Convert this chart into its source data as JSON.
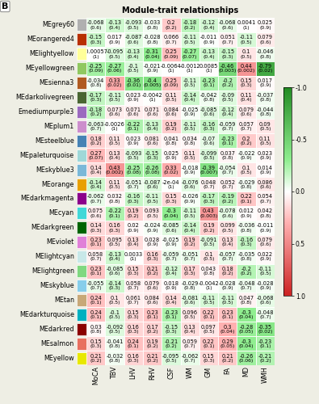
{
  "title": "Module-trait relationships",
  "panel_label": "B",
  "modules": [
    "MEgrey60",
    "MEorangered4",
    "MElightyellow",
    "MEyellowgreen",
    "MEsienna3",
    "MEdarkolivegreen",
    "Emediumpurple3",
    "MEplum1",
    "MEsteelblue",
    "MEpaleturquoise",
    "MEskyblue3",
    "MEorange",
    "MEdarkmagenta",
    "MEcyan",
    "MEdarkgreen",
    "MEviolet",
    "MElightcyan",
    "MElightgreen",
    "MEskyblue",
    "MEtan",
    "MEdarkturquoise",
    "MEdarkred",
    "MEsalmon",
    "MEyellow"
  ],
  "traits": [
    "MoCA",
    "TBV",
    "LHV",
    "RHV",
    "CSF",
    "WM",
    "GM",
    "FA",
    "MD",
    "WMH"
  ],
  "module_colors": [
    "#b0b0b0",
    "#b83000",
    "#ffff99",
    "#90c860",
    "#b05a20",
    "#4a6632",
    "#9b6abf",
    "#cc8ecc",
    "#4682b4",
    "#9fd8d8",
    "#7ab8d8",
    "#e8a000",
    "#8b008b",
    "#40d8d8",
    "#006400",
    "#e080d8",
    "#c8e8e8",
    "#80d880",
    "#87ceeb",
    "#c8a878",
    "#00b0c0",
    "#8b0000",
    "#e87060",
    "#e8e800"
  ],
  "corr_text": [
    [
      "-0.068",
      "-0.13",
      "-0.093",
      "-0.033",
      "0.2",
      "-0.18",
      "-0.12",
      "-0.068",
      "0.0041",
      "0.025"
    ],
    [
      "-0.15",
      "0.017",
      "-0.087",
      "-0.028",
      "0.066",
      "-0.11",
      "-0.011",
      "0.051",
      "-0.11",
      "0.079"
    ],
    [
      "-0.00057",
      "-0.095",
      "-0.13",
      "-0.31",
      "0.25",
      "-0.27",
      "-0.13",
      "-0.15",
      "0.1",
      "-0.046"
    ],
    [
      "-0.25",
      "-0.27",
      "-0.1",
      "-0.021",
      "-0.0064",
      "-0.0012",
      "0.0085",
      "-0.46",
      "0.44",
      "-0.79"
    ],
    [
      "-0.034",
      "0.33",
      "-0.36",
      "-0.4",
      "0.25",
      "-0.11",
      "-0.23",
      "-0.2",
      "0.15",
      "0.017"
    ],
    [
      "-0.17",
      "-0.11",
      "0.023",
      "-0.0042",
      "0.11",
      "-0.14",
      "-0.042",
      "-0.09",
      "0.11",
      "-0.037"
    ],
    [
      "-0.18",
      "0.073",
      "0.071",
      "0.071",
      "0.084",
      "-0.025",
      "-0.085",
      "-0.12",
      "0.079",
      "-0.044"
    ],
    [
      "-0.063",
      "-0.0026",
      "-0.22",
      "-0.13",
      "0.19",
      "-0.11",
      "-0.16",
      "-0.059",
      "0.057",
      "0.09"
    ],
    [
      "0.18",
      "0.11",
      "0.023",
      "0.081",
      "0.041",
      "0.034",
      "-0.07",
      "-0.23",
      "0.2",
      "0.11"
    ],
    [
      "0.27",
      "0.13",
      "-0.093",
      "-0.15",
      "0.025",
      "0.11",
      "-0.099",
      "0.037",
      "-0.022",
      "0.023"
    ],
    [
      "0.14",
      "0.43",
      "-0.25",
      "-0.26",
      "0.33",
      "-0.018",
      "-0.39",
      "-0.054",
      "0.1",
      "0.014"
    ],
    [
      "-0.14",
      "0.11",
      "-0.051",
      "-0.087",
      "-2e-04",
      "-0.076",
      "0.048",
      "0.052",
      "-0.029",
      "0.086"
    ],
    [
      "-0.062",
      "0.032",
      "-0.16",
      "-0.11",
      "0.15",
      "-0.026",
      "-0.17",
      "-0.19",
      "0.22",
      "0.054"
    ],
    [
      "0.075",
      "-0.22",
      "0.19",
      "0.093",
      "-0.3",
      "-0.11",
      "0.43",
      "-0.078",
      "0.012",
      "0.042"
    ],
    [
      "0.14",
      "0.16",
      "0.02",
      "-0.024",
      "-0.085",
      "-0.14",
      "0.19",
      "0.099",
      "-0.036",
      "-0.011"
    ],
    [
      "0.23",
      "0.095",
      "0.13",
      "0.028",
      "-0.025",
      "0.19",
      "-0.091",
      "0.13",
      "-0.16",
      "0.079"
    ],
    [
      "0.058",
      "-0.13",
      "0.0033",
      "0.16",
      "-0.059",
      "-0.051",
      "0.1",
      "-0.057",
      "-0.035",
      "0.022"
    ],
    [
      "0.23",
      "-0.085",
      "0.15",
      "0.21",
      "-0.12",
      "0.17",
      "0.043",
      "0.18",
      "-0.2",
      "-0.11"
    ],
    [
      "-0.055",
      "-0.14",
      "0.058",
      "0.079",
      "0.018",
      "-0.029",
      "-0.0042",
      "-0.028",
      "-0.048",
      "-0.028"
    ],
    [
      "0.24",
      "0.1",
      "0.061",
      "0.084",
      "0.14",
      "-0.081",
      "-0.11",
      "-0.11",
      "0.047",
      "-0.068"
    ],
    [
      "0.24",
      "-0.1",
      "0.15",
      "0.23",
      "-0.23",
      "0.096",
      "0.22",
      "0.23",
      "-0.3",
      "-0.048"
    ],
    [
      "0.03",
      "-0.092",
      "0.16",
      "0.17",
      "-0.15",
      "0.13",
      "0.097",
      "0.3",
      "-0.28",
      "-0.35"
    ],
    [
      "0.15",
      "-0.041",
      "0.24",
      "0.19",
      "-0.21",
      "0.059",
      "0.22",
      "0.29",
      "-0.3",
      "-0.23"
    ],
    [
      "0.21",
      "-0.032",
      "0.16",
      "0.21",
      "-0.095",
      "-0.062",
      "0.15",
      "0.21",
      "-0.26",
      "-0.21"
    ]
  ],
  "corr": [
    [
      -0.068,
      -0.13,
      -0.093,
      -0.033,
      0.2,
      -0.18,
      -0.12,
      -0.068,
      0.0041,
      0.025
    ],
    [
      -0.15,
      0.017,
      -0.087,
      -0.028,
      0.066,
      -0.11,
      -0.011,
      0.051,
      -0.11,
      0.079
    ],
    [
      -0.00057,
      -0.095,
      -0.13,
      -0.31,
      0.25,
      -0.27,
      -0.13,
      -0.15,
      0.1,
      -0.046
    ],
    [
      -0.25,
      -0.27,
      -0.1,
      -0.021,
      -0.0064,
      -0.0012,
      0.0085,
      -0.46,
      0.44,
      -0.79
    ],
    [
      -0.034,
      0.33,
      -0.36,
      -0.4,
      0.25,
      -0.11,
      -0.23,
      -0.2,
      0.15,
      0.017
    ],
    [
      -0.17,
      -0.11,
      0.023,
      -0.0042,
      0.11,
      -0.14,
      -0.042,
      -0.09,
      0.11,
      -0.037
    ],
    [
      -0.18,
      0.073,
      0.071,
      0.071,
      0.084,
      -0.025,
      -0.085,
      -0.12,
      0.079,
      -0.044
    ],
    [
      -0.063,
      -0.0026,
      -0.22,
      -0.13,
      0.19,
      -0.11,
      -0.16,
      -0.059,
      0.057,
      0.09
    ],
    [
      0.18,
      0.11,
      0.023,
      0.081,
      0.041,
      0.034,
      -0.07,
      -0.23,
      0.2,
      0.11
    ],
    [
      0.27,
      0.13,
      -0.093,
      -0.15,
      0.025,
      0.11,
      -0.099,
      0.037,
      -0.022,
      0.023
    ],
    [
      0.14,
      0.43,
      -0.25,
      -0.26,
      0.33,
      -0.018,
      -0.39,
      -0.054,
      0.1,
      0.014
    ],
    [
      -0.14,
      0.11,
      -0.051,
      -0.087,
      -0.0002,
      -0.076,
      0.048,
      0.052,
      -0.029,
      0.086
    ],
    [
      -0.062,
      0.032,
      -0.16,
      -0.11,
      0.15,
      -0.026,
      -0.17,
      -0.19,
      0.22,
      0.054
    ],
    [
      0.075,
      -0.22,
      0.19,
      0.093,
      -0.3,
      -0.11,
      0.43,
      -0.078,
      0.012,
      0.042
    ],
    [
      0.14,
      0.16,
      0.02,
      -0.024,
      -0.085,
      -0.14,
      0.19,
      0.099,
      -0.036,
      -0.011
    ],
    [
      0.23,
      0.095,
      0.13,
      0.028,
      -0.025,
      0.19,
      -0.091,
      0.13,
      -0.16,
      0.079
    ],
    [
      0.058,
      -0.13,
      0.0033,
      0.16,
      -0.059,
      -0.051,
      0.1,
      -0.057,
      -0.035,
      0.022
    ],
    [
      0.23,
      -0.085,
      0.15,
      0.21,
      -0.12,
      0.17,
      0.043,
      0.18,
      -0.2,
      -0.11
    ],
    [
      -0.055,
      -0.14,
      0.058,
      0.079,
      0.018,
      -0.029,
      -0.0042,
      -0.028,
      -0.048,
      -0.028
    ],
    [
      0.24,
      0.1,
      0.061,
      0.084,
      0.14,
      -0.081,
      -0.11,
      -0.11,
      0.047,
      -0.068
    ],
    [
      0.24,
      -0.1,
      0.15,
      0.23,
      -0.23,
      0.096,
      0.22,
      0.23,
      -0.3,
      -0.048
    ],
    [
      0.03,
      -0.092,
      0.16,
      0.17,
      -0.15,
      0.13,
      0.097,
      0.3,
      -0.28,
      -0.35
    ],
    [
      0.15,
      -0.041,
      0.24,
      0.19,
      -0.21,
      0.059,
      0.22,
      0.29,
      -0.3,
      -0.23
    ],
    [
      0.21,
      -0.032,
      0.16,
      0.21,
      -0.095,
      -0.062,
      0.15,
      0.21,
      -0.26,
      -0.21
    ]
  ],
  "pval": [
    [
      "(0.6)",
      "(0.4)",
      "(0.5)",
      "(0.8)",
      "(0.2)",
      "(0.2)",
      "(0.4)",
      "(0.6)",
      "(1)",
      "(0.9)"
    ],
    [
      "(0.3)",
      "(0.9)",
      "(0.6)",
      "(0.8)",
      "(0.7)",
      "(0.5)",
      "(0.9)",
      "(0.7)",
      "(0.5)",
      "(0.6)"
    ],
    [
      "(1)",
      "(0.5)",
      "(0.4)",
      "(0.04)",
      "(0.09)",
      "(0.07)",
      "(0.4)",
      "(0.3)",
      "(0.5)",
      "(0.8)"
    ],
    [
      "(0.09)",
      "(0.06)",
      "(0.5)",
      "(0.9)",
      "(1)",
      "(1)",
      "(1)",
      "(0.003)",
      "(0.002)",
      "(0.02)"
    ],
    [
      "(0.8)",
      "(0.02)",
      "(0.01)",
      "(0.005)",
      "(0.09)",
      "(0.5)",
      "(0.1)",
      "(0.2)",
      "(0.3)",
      "(0.9)"
    ],
    [
      "(0.3)",
      "(0.5)",
      "(0.9)",
      "(1)",
      "(0.5)",
      "(0.4)",
      "(0.8)",
      "(0.5)",
      "(0.4)",
      "(0.8)"
    ],
    [
      "(0.2)",
      "(0.6)",
      "(0.6)",
      "(0.6)",
      "(0.6)",
      "(0.9)",
      "(0.6)",
      "(0.4)",
      "(0.6)",
      "(0.8)"
    ],
    [
      "(0.7)",
      "(1)",
      "(0.1)",
      "(0.4)",
      "(0.2)",
      "(0.5)",
      "(0.3)",
      "(0.7)",
      "(0.7)",
      "(0.5)"
    ],
    [
      "(0.2)",
      "(0.5)",
      "(0.9)",
      "(0.6)",
      "(0.8)",
      "(0.8)",
      "(0.6)",
      "(0.1)",
      "(0.2)",
      "(0.5)"
    ],
    [
      "(0.07)",
      "(0.4)",
      "(0.5)",
      "(0.3)",
      "(0.9)",
      "(0.5)",
      "(0.5)",
      "(0.8)",
      "(0.9)",
      "(0.9)"
    ],
    [
      "(0.4)",
      "(0.002)",
      "(0.08)",
      "(0.08)",
      "(0.02)",
      "(0.9)",
      "(0.007)",
      "(0.7)",
      "(0.5)",
      "(0.9)"
    ],
    [
      "(0.4)",
      "(0.5)",
      "(0.7)",
      "(0.6)",
      "(1)",
      "(0.6)",
      "(0.7)",
      "(0.7)",
      "(0.8)",
      "(0.6)"
    ],
    [
      "(0.7)",
      "(0.8)",
      "(0.3)",
      "(0.5)",
      "(0.3)",
      "(0.9)",
      "(0.3)",
      "(0.2)",
      "(0.1)",
      "(0.7)"
    ],
    [
      "(0.6)",
      "(0.1)",
      "(0.2)",
      "(0.5)",
      "(0.04)",
      "(0.5)",
      "(0.003)",
      "(0.6)",
      "(0.9)",
      "(0.8)"
    ],
    [
      "(0.3)",
      "(0.3)",
      "(0.9)",
      "(0.9)",
      "(0.6)",
      "(0.4)",
      "(0.2)",
      "(0.5)",
      "(0.8)",
      "(0.9)"
    ],
    [
      "(0.1)",
      "(0.5)",
      "(0.4)",
      "(0.9)",
      "(0.9)",
      "(0.2)",
      "(0.5)",
      "(0.4)",
      "(0.3)",
      "(0.6)"
    ],
    [
      "(0.7)",
      "(0.4)",
      "(1)",
      "(0.3)",
      "(0.7)",
      "(0.7)",
      "(0.5)",
      "(0.7)",
      "(0.8)",
      "(0.9)"
    ],
    [
      "(0.1)",
      "(0.6)",
      "(0.3)",
      "(0.2)",
      "(0.4)",
      "(0.3)",
      "(0.8)",
      "(0.2)",
      "(0.2)",
      "(0.5)"
    ],
    [
      "(0.7)",
      "(0.3)",
      "(0.7)",
      "(0.6)",
      "(0.9)",
      "(0.8)",
      "(1)",
      "(0.9)",
      "(0.7)",
      "(0.9)"
    ],
    [
      "(0.1)",
      "(0.5)",
      "(0.7)",
      "(0.6)",
      "(0.4)",
      "(0.6)",
      "(0.5)",
      "(0.5)",
      "(0.8)",
      "(0.6)"
    ],
    [
      "(0.1)",
      "(0.5)",
      "(0.3)",
      "(0.1)",
      "(0.1)",
      "(0.5)",
      "(0.1)",
      "(0.1)",
      "(0.04)",
      "(0.7)"
    ],
    [
      "(0.8)",
      "(0.5)",
      "(0.3)",
      "(0.2)",
      "(0.3)",
      "(0.4)",
      "(0.5)",
      "(0.04)",
      "(0.05)",
      "(0.02)"
    ],
    [
      "(0.3)",
      "(0.8)",
      "(0.1)",
      "(0.2)",
      "(0.2)",
      "(0.7)",
      "(0.1)",
      "(0.05)",
      "(0.04)",
      "(0.1)"
    ],
    [
      "(0.2)",
      "(0.8)",
      "(0.3)",
      "(0.2)",
      "(0.5)",
      "(0.7)",
      "(0.3)",
      "(0.2)",
      "(0.06)",
      "(0.2)"
    ]
  ],
  "vmin": -1.0,
  "vmax": 1.0,
  "bg_color": "#eeeee4",
  "title_fontsize": 7,
  "text_fontsize": 4.8,
  "pval_fontsize": 4.5,
  "module_label_fontsize": 5.8,
  "trait_label_fontsize": 5.8,
  "colorbar_ticks": [
    1.0,
    0.5,
    0.0,
    -0.5,
    -1.0
  ],
  "colorbar_ticklabels": [
    "1.0",
    "0.5",
    "0.0",
    "-0.5",
    "-1.0"
  ]
}
